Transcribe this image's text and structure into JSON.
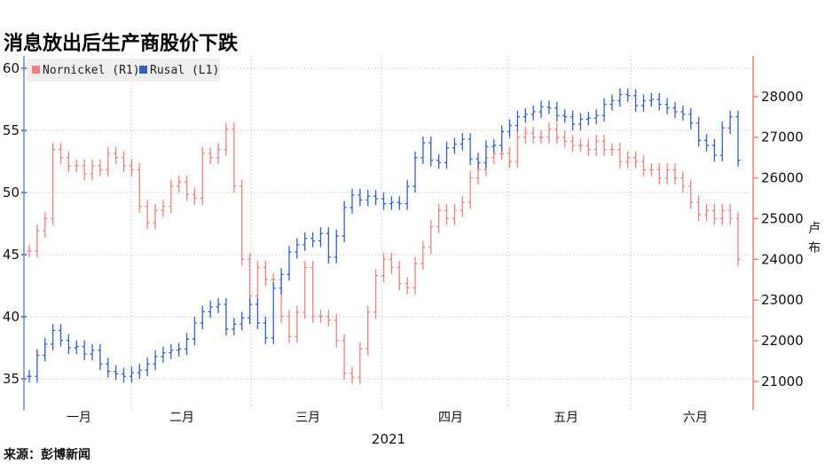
{
  "chart_data": {
    "type": "line",
    "title": "消息放出后生产商股价下跌",
    "source": "来源：彭博新闻",
    "year_label": "2021",
    "months": [
      "一月",
      "二月",
      "三月",
      "四月",
      "五月",
      "六月"
    ],
    "right_axis_unit": "卢布",
    "legend_position": "top-left",
    "grid": true,
    "left_axis": {
      "ylim": [
        32.5,
        61
      ],
      "ticks": [
        35,
        40,
        45,
        50,
        55,
        60
      ]
    },
    "right_axis": {
      "ylim": [
        20300,
        29000
      ],
      "ticks": [
        21000,
        22000,
        23000,
        24000,
        25000,
        26000,
        27000,
        28000
      ]
    },
    "series": [
      {
        "name": "Nornickel (R1)",
        "axis": "right",
        "color": "#f08080",
        "values": [
          24200,
          24700,
          25000,
          26700,
          26500,
          26300,
          26300,
          26100,
          26300,
          26200,
          26600,
          26500,
          26300,
          26200,
          25300,
          24900,
          25200,
          25300,
          25800,
          25900,
          25600,
          25500,
          26600,
          26500,
          26700,
          27200,
          25800,
          24000,
          23100,
          23800,
          23500,
          23500,
          22600,
          22100,
          22700,
          23800,
          22600,
          22600,
          22500,
          22000,
          21200,
          21100,
          21800,
          22700,
          23600,
          24000,
          23800,
          23400,
          23300,
          23900,
          24300,
          24800,
          25200,
          25000,
          25200,
          25400,
          26000,
          26200,
          26500,
          26600,
          26600,
          26400,
          27000,
          27100,
          27000,
          27000,
          27200,
          27000,
          26900,
          26800,
          26800,
          26700,
          26900,
          26700,
          26700,
          26400,
          26500,
          26400,
          26200,
          26200,
          26000,
          26200,
          26000,
          25800,
          25400,
          25100,
          25200,
          25000,
          25200,
          25000,
          24000
        ]
      },
      {
        "name": "Rusal (L1)",
        "axis": "left",
        "color": "#3060c8",
        "values": [
          35.2,
          36.9,
          37.8,
          38.9,
          38.1,
          37.5,
          37.6,
          37.0,
          37.3,
          36.2,
          35.6,
          35.4,
          35.2,
          35.5,
          35.7,
          36.2,
          36.8,
          37.1,
          37.3,
          37.4,
          38.2,
          39.5,
          40.4,
          40.8,
          41.0,
          39.0,
          39.4,
          39.9,
          41.0,
          39.5,
          38.3,
          42.3,
          43.4,
          45.2,
          45.8,
          46.3,
          46.1,
          46.7,
          44.8,
          46.5,
          48.8,
          49.8,
          49.4,
          49.7,
          49.5,
          49.1,
          49.2,
          49.1,
          50.5,
          52.8,
          54.0,
          52.6,
          52.4,
          53.6,
          53.9,
          54.3,
          52.7,
          52.4,
          53.7,
          53.8,
          54.9,
          55.4,
          56.1,
          56.3,
          56.5,
          56.9,
          56.8,
          56.2,
          56.1,
          55.5,
          55.9,
          56.0,
          56.2,
          57.1,
          57.4,
          57.9,
          57.8,
          57.0,
          57.4,
          57.5,
          57.1,
          56.8,
          56.5,
          56.3,
          55.6,
          54.2,
          53.8,
          53.0,
          55.2,
          56.1,
          52.6
        ]
      }
    ]
  },
  "colors": {
    "nornickel": "#f08080",
    "rusal": "#3060c8",
    "grid": "#cfcfcf"
  }
}
